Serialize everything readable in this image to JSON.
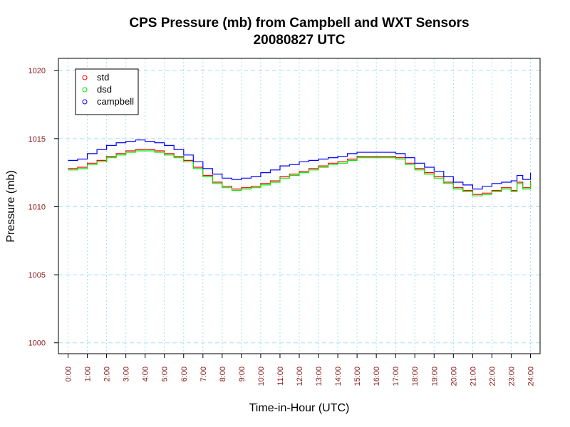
{
  "chart_data": {
    "type": "line",
    "title": "CPS Pressure (mb) from Campbell and WXT Sensors",
    "subtitle": "20080827  UTC",
    "xlabel": "Time-in-Hour (UTC)",
    "ylabel": "Pressure (mb)",
    "xlim": [
      -0.5,
      24.5
    ],
    "ylim": [
      999.2,
      1020.9
    ],
    "x_ticks": [
      0,
      1,
      2,
      3,
      4,
      5,
      6,
      7,
      8,
      9,
      10,
      11,
      12,
      13,
      14,
      15,
      16,
      17,
      18,
      19,
      20,
      21,
      22,
      23,
      24
    ],
    "x_tick_labels": [
      "0:00",
      "1:00",
      "2:00",
      "3:00",
      "4:00",
      "5:00",
      "6:00",
      "7:00",
      "8:00",
      "9:00",
      "10:00",
      "11:00",
      "12:00",
      "13:00",
      "14:00",
      "15:00",
      "16:00",
      "17:00",
      "18:00",
      "19:00",
      "20:00",
      "21:00",
      "22:00",
      "23:00",
      "24:00"
    ],
    "y_ticks": [
      1000,
      1005,
      1010,
      1015,
      1020
    ],
    "y_tick_labels": [
      "1000",
      "1005",
      "1010",
      "1015",
      "1020"
    ],
    "grid": true,
    "legend_position": "top-left",
    "x": [
      0,
      0.5,
      1,
      1.5,
      2,
      2.5,
      3,
      3.5,
      4,
      4.5,
      5,
      5.5,
      6,
      6.5,
      7,
      7.5,
      8,
      8.5,
      9,
      9.5,
      10,
      10.5,
      11,
      11.5,
      12,
      12.5,
      13,
      13.5,
      14,
      14.5,
      15,
      15.5,
      16,
      16.5,
      17,
      17.5,
      18,
      18.5,
      19,
      19.5,
      20,
      20.5,
      21,
      21.5,
      22,
      22.5,
      23,
      23.3,
      23.6,
      24
    ],
    "series": [
      {
        "name": "std",
        "color": "#ff0000",
        "values": [
          1012.8,
          1012.9,
          1013.2,
          1013.4,
          1013.7,
          1013.9,
          1014.1,
          1014.2,
          1014.2,
          1014.1,
          1013.9,
          1013.7,
          1013.4,
          1012.9,
          1012.3,
          1011.8,
          1011.5,
          1011.3,
          1011.4,
          1011.5,
          1011.7,
          1011.9,
          1012.2,
          1012.4,
          1012.6,
          1012.8,
          1013.0,
          1013.2,
          1013.3,
          1013.5,
          1013.7,
          1013.7,
          1013.7,
          1013.7,
          1013.6,
          1013.2,
          1012.8,
          1012.5,
          1012.2,
          1011.8,
          1011.4,
          1011.2,
          1010.9,
          1011.0,
          1011.2,
          1011.4,
          1011.2,
          1011.8,
          1011.4,
          1011.9
        ]
      },
      {
        "name": "dsd",
        "color": "#00ee00",
        "values": [
          1012.7,
          1012.8,
          1013.1,
          1013.3,
          1013.6,
          1013.8,
          1014.0,
          1014.1,
          1014.1,
          1014.0,
          1013.8,
          1013.6,
          1013.3,
          1012.8,
          1012.2,
          1011.7,
          1011.4,
          1011.2,
          1011.3,
          1011.4,
          1011.6,
          1011.8,
          1012.1,
          1012.3,
          1012.5,
          1012.7,
          1012.9,
          1013.1,
          1013.2,
          1013.4,
          1013.6,
          1013.6,
          1013.6,
          1013.6,
          1013.5,
          1013.1,
          1012.7,
          1012.4,
          1012.1,
          1011.7,
          1011.3,
          1011.1,
          1010.8,
          1010.9,
          1011.1,
          1011.3,
          1011.1,
          1011.7,
          1011.3,
          1011.8
        ]
      },
      {
        "name": "campbell",
        "color": "#0000ff",
        "values": [
          1013.4,
          1013.5,
          1013.9,
          1014.2,
          1014.5,
          1014.7,
          1014.8,
          1014.9,
          1014.8,
          1014.7,
          1014.5,
          1014.2,
          1013.8,
          1013.3,
          1012.8,
          1012.4,
          1012.1,
          1012.0,
          1012.1,
          1012.2,
          1012.5,
          1012.7,
          1013.0,
          1013.1,
          1013.3,
          1013.4,
          1013.5,
          1013.6,
          1013.7,
          1013.9,
          1014.0,
          1014.0,
          1014.0,
          1014.0,
          1013.9,
          1013.6,
          1013.2,
          1012.9,
          1012.6,
          1012.2,
          1011.8,
          1011.6,
          1011.3,
          1011.5,
          1011.7,
          1011.8,
          1011.9,
          1012.3,
          1012.0,
          1012.5
        ]
      }
    ]
  }
}
